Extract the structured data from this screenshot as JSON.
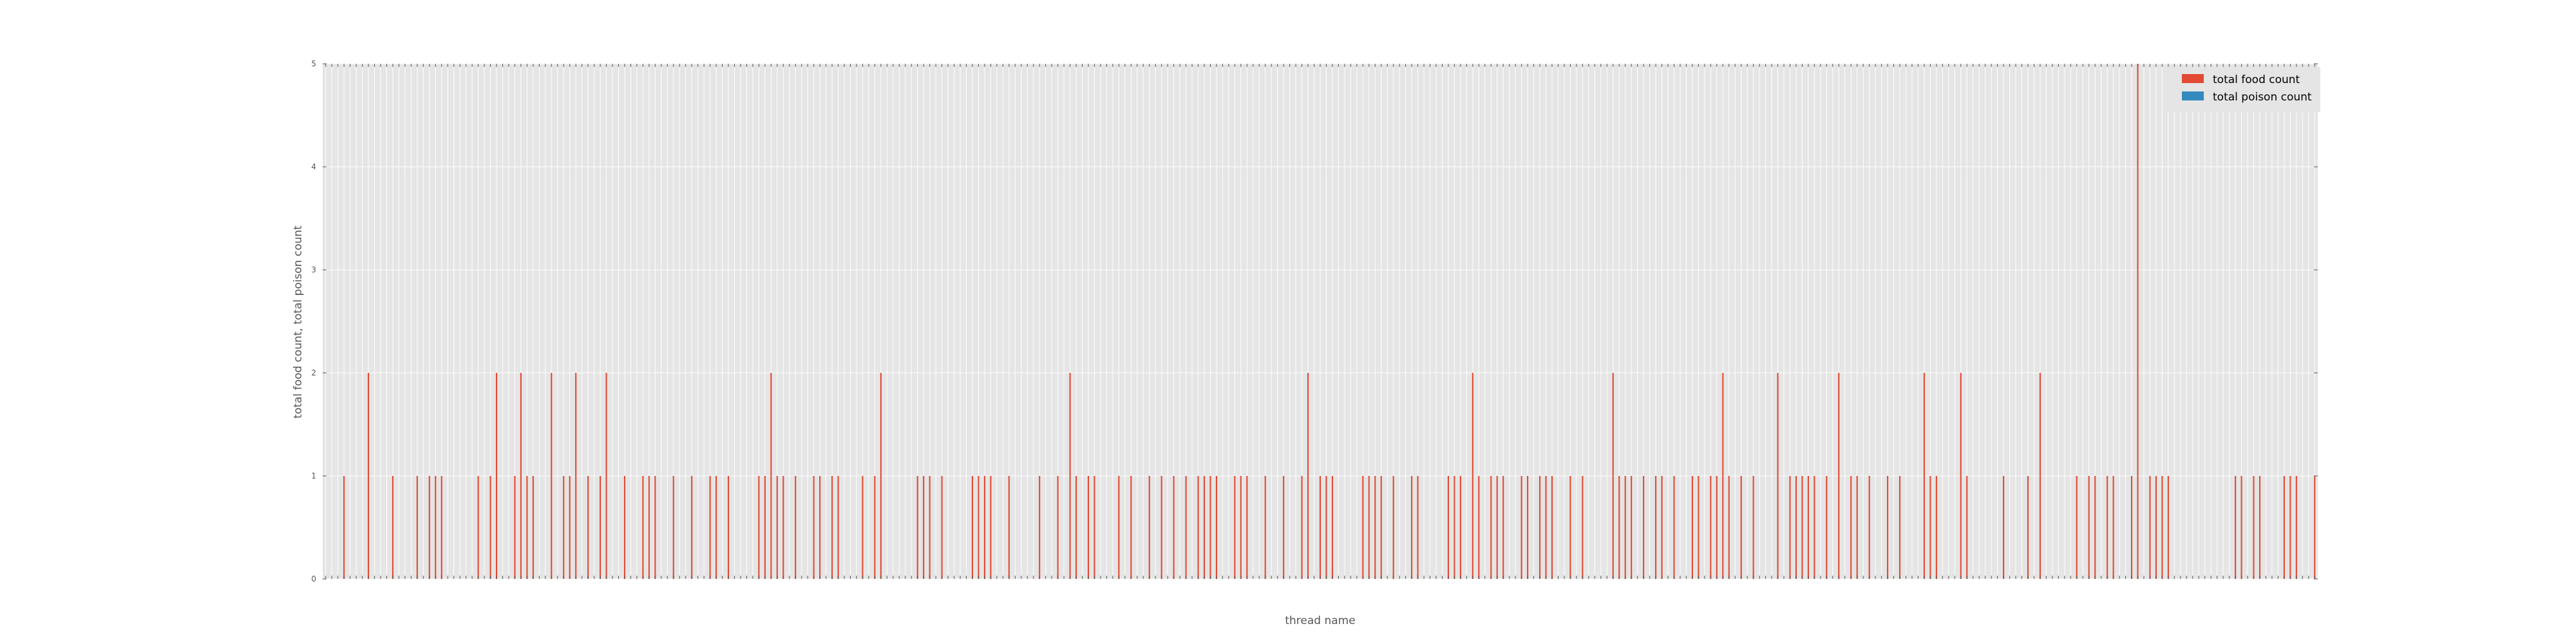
{
  "chart_data": {
    "type": "bar",
    "title": "",
    "xlabel": "thread name",
    "ylabel": "total food count, total poison count",
    "ylim": [
      0,
      5
    ],
    "yticks": [
      "0",
      "1",
      "2",
      "3",
      "4",
      "5"
    ],
    "grid": true,
    "legend_position": "top-right",
    "colors": {
      "food": "#e24a33",
      "poison": "#348abd",
      "plot_bg": "#e5e5e5",
      "grid": "#ffffff"
    },
    "series": [
      {
        "name": "total food count",
        "values": [
          0,
          0,
          0,
          1,
          0,
          0,
          0,
          2,
          0,
          0,
          0,
          1,
          0,
          0,
          0,
          1,
          0,
          1,
          1,
          1,
          0,
          0,
          0,
          0,
          0,
          1,
          0,
          1,
          2,
          0,
          0,
          1,
          2,
          1,
          1,
          0,
          0,
          2,
          0,
          1,
          1,
          2,
          0,
          1,
          0,
          1,
          2,
          0,
          0,
          1,
          0,
          0,
          1,
          1,
          1,
          0,
          0,
          1,
          0,
          0,
          1,
          0,
          0,
          1,
          1,
          0,
          1,
          0,
          0,
          0,
          0,
          1,
          1,
          2,
          1,
          1,
          0,
          1,
          0,
          0,
          1,
          1,
          0,
          1,
          1,
          0,
          0,
          0,
          1,
          0,
          1,
          2,
          0,
          0,
          0,
          0,
          0,
          1,
          1,
          1,
          0,
          1,
          0,
          0,
          0,
          0,
          1,
          1,
          1,
          1,
          0,
          0,
          1,
          0,
          0,
          0,
          0,
          1,
          0,
          0,
          1,
          0,
          2,
          1,
          0,
          1,
          1,
          0,
          0,
          0,
          1,
          0,
          1,
          0,
          0,
          1,
          0,
          1,
          0,
          1,
          0,
          1,
          0,
          1,
          1,
          1,
          1,
          0,
          0,
          1,
          1,
          1,
          0,
          0,
          1,
          0,
          0,
          1,
          0,
          0,
          1,
          2,
          0,
          1,
          1,
          1,
          0,
          0,
          0,
          0,
          1,
          1,
          1,
          1,
          0,
          1,
          0,
          0,
          1,
          1,
          0,
          0,
          0,
          0,
          1,
          1,
          1,
          0,
          2,
          1,
          0,
          1,
          1,
          1,
          0,
          0,
          1,
          1,
          0,
          1,
          1,
          1,
          0,
          0,
          1,
          0,
          1,
          0,
          0,
          0,
          0,
          2,
          1,
          1,
          1,
          0,
          1,
          0,
          1,
          1,
          0,
          1,
          0,
          0,
          1,
          1,
          0,
          1,
          1,
          2,
          1,
          0,
          1,
          0,
          1,
          0,
          0,
          0,
          2,
          0,
          1,
          1,
          1,
          1,
          1,
          0,
          1,
          0,
          2,
          0,
          1,
          1,
          0,
          1,
          0,
          0,
          1,
          0,
          1,
          0,
          0,
          0,
          2,
          1,
          1,
          0,
          0,
          0,
          2,
          1,
          0,
          0,
          0,
          0,
          0,
          1,
          0,
          0,
          0,
          1,
          0,
          2,
          0,
          0,
          0,
          0,
          0,
          1,
          0,
          1,
          1,
          0,
          1,
          1,
          0,
          0,
          1,
          5,
          0,
          1,
          1,
          1,
          1,
          0,
          0,
          0,
          0,
          0,
          0,
          0,
          0,
          0,
          0,
          1,
          1,
          0,
          1,
          1,
          0,
          0,
          0,
          1,
          1,
          1,
          0,
          0,
          1
        ]
      },
      {
        "name": "total poison count",
        "values": []
      }
    ]
  }
}
